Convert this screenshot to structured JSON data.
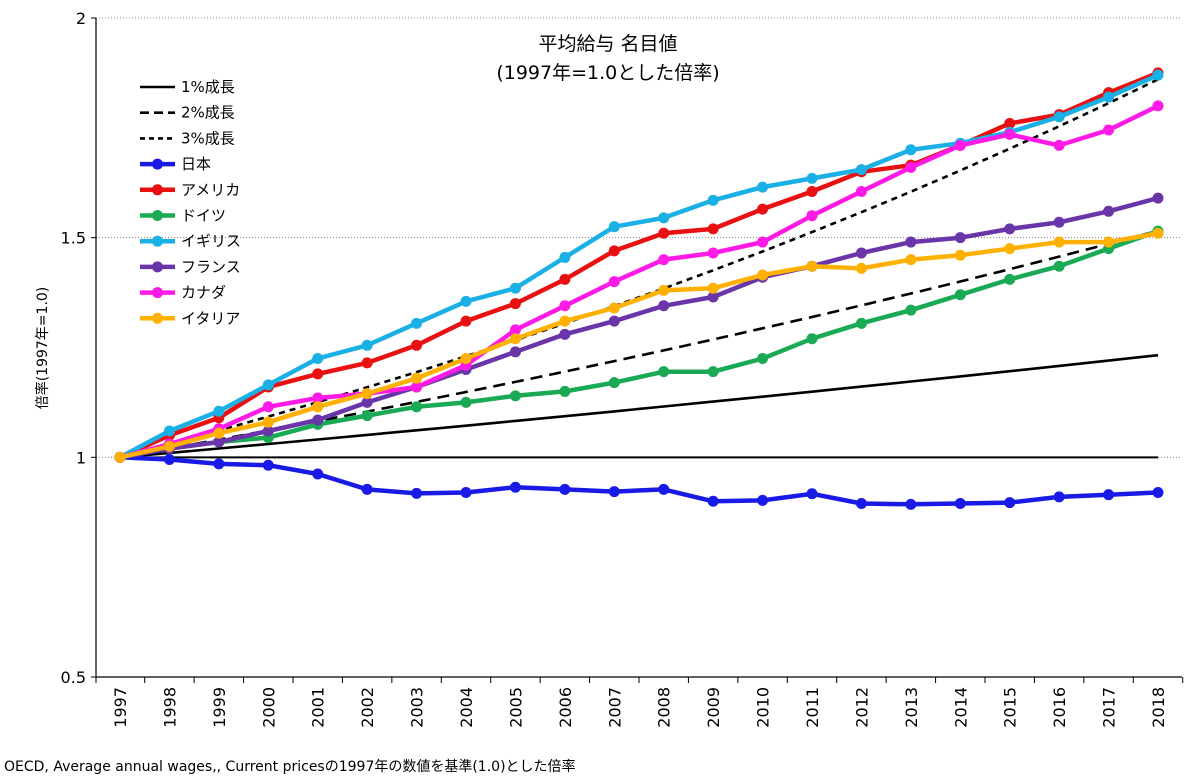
{
  "chart_data": {
    "type": "line",
    "title": "平均給与 名目値",
    "subtitle": "(1997年=1.0とした倍率)",
    "ylabel": "倍率(1997年=1.0)",
    "xlabel": "",
    "categories": [
      "1997",
      "1998",
      "1999",
      "2000",
      "2001",
      "2002",
      "2003",
      "2004",
      "2005",
      "2006",
      "2007",
      "2008",
      "2009",
      "2010",
      "2011",
      "2012",
      "2013",
      "2014",
      "2015",
      "2016",
      "2017",
      "2018"
    ],
    "ylim": [
      0.5,
      2
    ],
    "yticks": [
      "0.5",
      "1",
      "1.5",
      "2"
    ],
    "ytick_values": [
      0.5,
      1,
      1.5,
      2
    ],
    "grid": "horizontal-dotted",
    "legend_position": "top-left",
    "series": [
      {
        "name": "1%成長",
        "color": "#000000",
        "style": "solid",
        "markers": false,
        "values": [
          1.0,
          1.01,
          1.0201,
          1.0303,
          1.0406,
          1.051,
          1.0615,
          1.0721,
          1.0829,
          1.0937,
          1.1046,
          1.1157,
          1.1268,
          1.1381,
          1.1495,
          1.161,
          1.1726,
          1.1843,
          1.1961,
          1.2081,
          1.2202,
          1.2324
        ]
      },
      {
        "name": "2%成長",
        "color": "#000000",
        "style": "dashed",
        "markers": false,
        "values": [
          1.0,
          1.02,
          1.0404,
          1.0612,
          1.0824,
          1.1041,
          1.1262,
          1.1487,
          1.1717,
          1.1951,
          1.219,
          1.2434,
          1.2682,
          1.2936,
          1.3195,
          1.3459,
          1.3728,
          1.4002,
          1.4282,
          1.4568,
          1.4859,
          1.5157
        ]
      },
      {
        "name": "3%成長",
        "color": "#000000",
        "style": "short-dashed",
        "markers": false,
        "values": [
          1.0,
          1.03,
          1.0609,
          1.0927,
          1.1255,
          1.1593,
          1.1941,
          1.2299,
          1.2668,
          1.3048,
          1.3439,
          1.3842,
          1.4258,
          1.4685,
          1.5126,
          1.558,
          1.6047,
          1.6528,
          1.7024,
          1.7535,
          1.8061,
          1.8603
        ]
      },
      {
        "name": "日本",
        "color": "#1a1ae6",
        "style": "solid",
        "markers": true,
        "values": [
          1.0,
          0.995,
          0.985,
          0.982,
          0.962,
          0.927,
          0.918,
          0.92,
          0.932,
          0.927,
          0.922,
          0.927,
          0.9,
          0.902,
          0.917,
          0.895,
          0.893,
          0.895,
          0.897,
          0.91,
          0.915,
          0.92
        ]
      },
      {
        "name": "アメリカ",
        "color": "#e81010",
        "style": "solid",
        "markers": true,
        "values": [
          1.0,
          1.05,
          1.09,
          1.16,
          1.19,
          1.215,
          1.255,
          1.31,
          1.35,
          1.405,
          1.47,
          1.51,
          1.52,
          1.565,
          1.605,
          1.65,
          1.665,
          1.71,
          1.76,
          1.78,
          1.83,
          1.875
        ]
      },
      {
        "name": "ドイツ",
        "color": "#1aaa55",
        "style": "solid",
        "markers": true,
        "values": [
          1.0,
          1.02,
          1.035,
          1.045,
          1.075,
          1.095,
          1.115,
          1.125,
          1.14,
          1.15,
          1.17,
          1.195,
          1.195,
          1.225,
          1.27,
          1.305,
          1.335,
          1.37,
          1.405,
          1.435,
          1.475,
          1.515
        ]
      },
      {
        "name": "イギリス",
        "color": "#1ab0e6",
        "style": "solid",
        "markers": true,
        "values": [
          1.0,
          1.06,
          1.105,
          1.165,
          1.225,
          1.255,
          1.305,
          1.355,
          1.385,
          1.455,
          1.525,
          1.545,
          1.585,
          1.615,
          1.635,
          1.655,
          1.7,
          1.715,
          1.74,
          1.775,
          1.82,
          1.87
        ]
      },
      {
        "name": "フランス",
        "color": "#6a35a8",
        "style": "solid",
        "markers": true,
        "values": [
          1.0,
          1.02,
          1.035,
          1.06,
          1.085,
          1.125,
          1.16,
          1.2,
          1.24,
          1.28,
          1.31,
          1.345,
          1.365,
          1.41,
          1.435,
          1.465,
          1.49,
          1.5,
          1.52,
          1.535,
          1.56,
          1.59
        ]
      },
      {
        "name": "カナダ",
        "color": "#ff1ae6",
        "style": "solid",
        "markers": true,
        "values": [
          1.0,
          1.03,
          1.065,
          1.115,
          1.135,
          1.145,
          1.16,
          1.21,
          1.29,
          1.345,
          1.4,
          1.45,
          1.465,
          1.49,
          1.55,
          1.605,
          1.66,
          1.71,
          1.735,
          1.71,
          1.745,
          1.8
        ]
      },
      {
        "name": "イタリア",
        "color": "#ffb000",
        "style": "solid",
        "markers": true,
        "values": [
          1.0,
          1.025,
          1.055,
          1.08,
          1.115,
          1.145,
          1.18,
          1.225,
          1.27,
          1.31,
          1.34,
          1.38,
          1.385,
          1.415,
          1.435,
          1.43,
          1.45,
          1.46,
          1.475,
          1.49,
          1.49,
          1.51
        ]
      }
    ]
  },
  "footer": {
    "source_text": "OECD, Average annual wages,, Current pricesの1997年の数値を基準(1.0)とした倍率"
  }
}
